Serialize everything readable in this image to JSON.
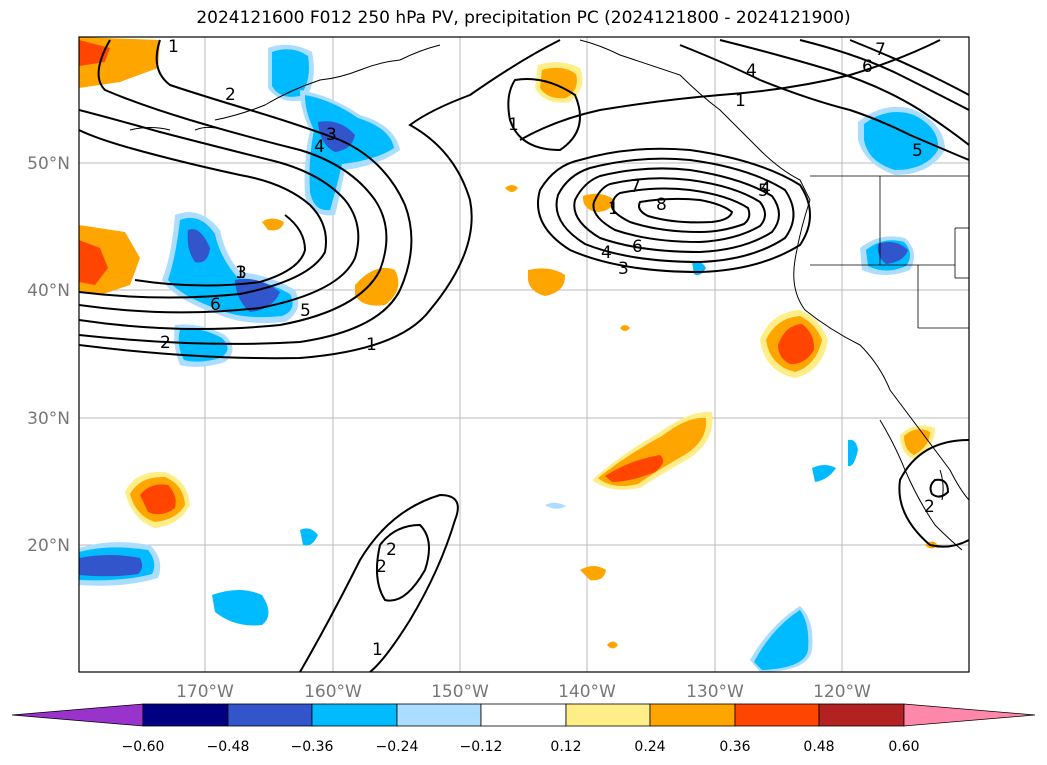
{
  "title": "2024121600 F012 250 hPa PV, precipitation PC (2024121800 - 2024121900)",
  "map": {
    "lat_labels": [
      "50°N",
      "40°N",
      "30°N",
      "20°N"
    ],
    "lon_labels": [
      "170°W",
      "160°W",
      "150°W",
      "140°W",
      "130°W",
      "120°W"
    ]
  },
  "contour_labels": [
    "1",
    "2",
    "3",
    "4",
    "1",
    "7",
    "6",
    "5",
    "4",
    "1",
    "4",
    "3",
    "4",
    "5",
    "6",
    "7",
    "8",
    "1",
    "2",
    "3",
    "1",
    "6",
    "5",
    "2",
    "1",
    "2",
    "1",
    "2"
  ],
  "colorbar": {
    "ticks": [
      "−0.60",
      "−0.48",
      "−0.36",
      "−0.24",
      "−0.12",
      "0.12",
      "0.24",
      "0.36",
      "0.48",
      "0.60"
    ],
    "colors": {
      "under": "#9933cc",
      "c1": "#000080",
      "c2": "#3355cc",
      "c3": "#00bbff",
      "c4": "#aaddff",
      "c5": "#ffffff",
      "c6": "#ffee88",
      "c7": "#ffa500",
      "c8": "#ff4500",
      "c9": "#b22222",
      "over": "#ff88aa"
    }
  }
}
